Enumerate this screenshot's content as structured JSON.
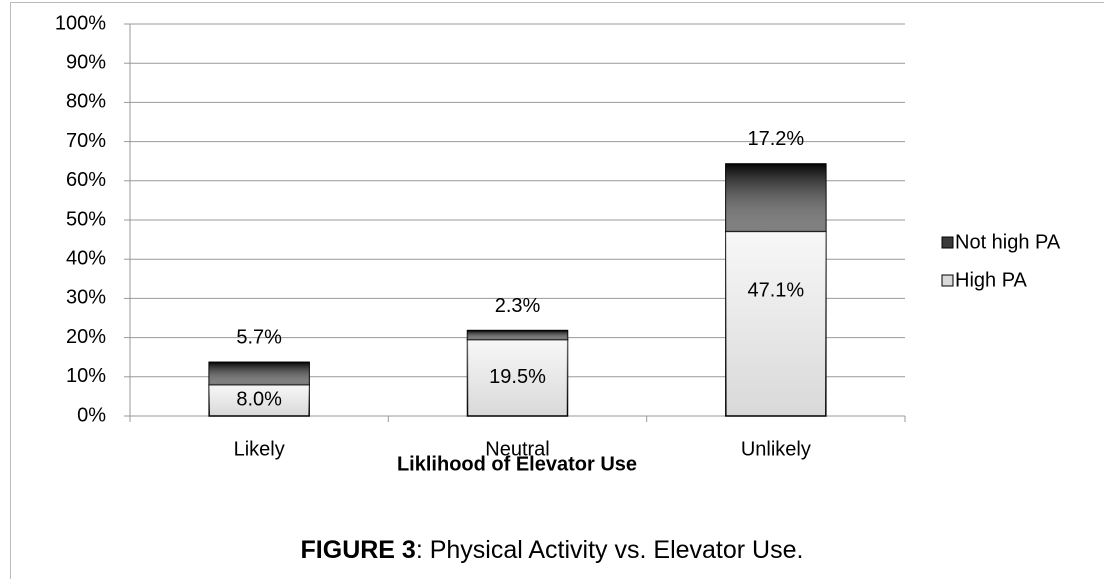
{
  "chart_data": {
    "type": "stacked_bar",
    "categories": [
      "Likely",
      "Neutral",
      "Unlikely"
    ],
    "series": [
      {
        "name": "High PA",
        "color": "#d9d9d9",
        "values": [
          8.0,
          19.5,
          47.1
        ],
        "value_labels": [
          "8.0%",
          "19.5%",
          "47.1%"
        ]
      },
      {
        "name": "Not high PA",
        "color": "#3a3a3a",
        "values": [
          5.7,
          2.3,
          17.2
        ],
        "value_labels": [
          "5.7%",
          "2.3%",
          "17.2%"
        ]
      }
    ],
    "ylim": [
      0,
      100
    ],
    "yticks": [
      {
        "value": 0,
        "label": "0%"
      },
      {
        "value": 10,
        "label": "10%"
      },
      {
        "value": 20,
        "label": "20%"
      },
      {
        "value": 30,
        "label": "30%"
      },
      {
        "value": 40,
        "label": "40%"
      },
      {
        "value": 50,
        "label": "50%"
      },
      {
        "value": 60,
        "label": "60%"
      },
      {
        "value": 70,
        "label": "70%"
      },
      {
        "value": 80,
        "label": "80%"
      },
      {
        "value": 90,
        "label": "90%"
      },
      {
        "value": 100,
        "label": "100%"
      }
    ],
    "grid": true,
    "xlabel": "Liklihood of Elevator Use",
    "caption_label": "FIGURE 3",
    "caption_text": ": Physical Activity vs. Elevator Use.",
    "legend": "right"
  }
}
